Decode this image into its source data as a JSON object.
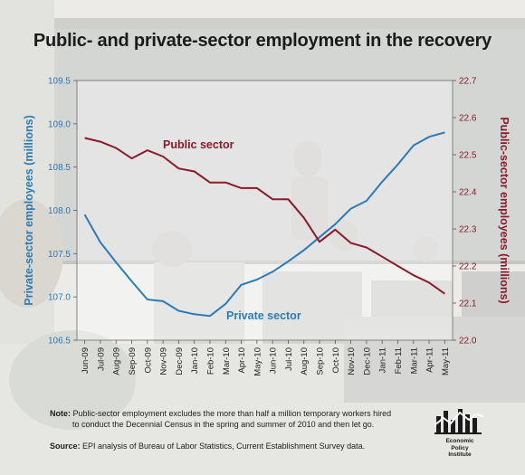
{
  "title": "Public- and private-sector employment in the recovery",
  "chart_data": {
    "type": "line",
    "categories": [
      "Jun-09",
      "Jul-09",
      "Aug-09",
      "Sep-09",
      "Oct-09",
      "Nov-09",
      "Dec-09",
      "Jan-10",
      "Feb-10",
      "Mar-10",
      "Apr-10",
      "May-10",
      "Jun-10",
      "Jul-10",
      "Aug-10",
      "Sep-10",
      "Oct-10",
      "Nov-10",
      "Dec-10",
      "Jan-11",
      "Feb-11",
      "Mar-11",
      "Apr-11",
      "May-11"
    ],
    "y_left": {
      "label": "Private-sector employees (millions)",
      "range": [
        106.5,
        109.5
      ],
      "ticks": [
        "106.5",
        "107.0",
        "107.5",
        "108.0",
        "108.5",
        "109.0",
        "109.5"
      ],
      "color": "#2b7bb9"
    },
    "y_right": {
      "label": "Public-sector employees (millions)",
      "range": [
        22.0,
        22.7
      ],
      "ticks": [
        "22.0",
        "22.1",
        "22.2",
        "22.3",
        "22.4",
        "22.5",
        "22.6",
        "22.7"
      ],
      "color": "#8b1a2b"
    },
    "series": [
      {
        "name": "Private sector",
        "axis": "left",
        "color": "#2b7bb9",
        "values": [
          107.95,
          107.63,
          107.4,
          107.18,
          106.97,
          106.95,
          106.84,
          106.8,
          106.78,
          106.92,
          107.14,
          107.2,
          107.29,
          107.41,
          107.54,
          107.69,
          107.84,
          108.02,
          108.11,
          108.33,
          108.53,
          108.75,
          108.85,
          108.9
        ]
      },
      {
        "name": "Public sector",
        "axis": "right",
        "color": "#8b1a2b",
        "values": [
          22.545,
          22.535,
          22.518,
          22.49,
          22.512,
          22.495,
          22.463,
          22.455,
          22.425,
          22.425,
          22.41,
          22.41,
          22.38,
          22.38,
          22.33,
          22.265,
          22.298,
          22.262,
          22.25,
          22.225,
          22.2,
          22.175,
          22.155,
          22.125
        ]
      }
    ],
    "grid": false
  },
  "note": {
    "label": "Note:",
    "line1": " Public-sector employment excludes the more than half a million temporary workers hired",
    "line2": "to conduct the Decennial Census in the spring and summer of 2010 and then let go."
  },
  "source": {
    "label": "Source:",
    "text": " EPI analysis of Bureau of Labor Statistics, Current Establishment Survey data."
  },
  "logo": {
    "line1": "Economic",
    "line2": "Policy",
    "line3": "Institute"
  }
}
